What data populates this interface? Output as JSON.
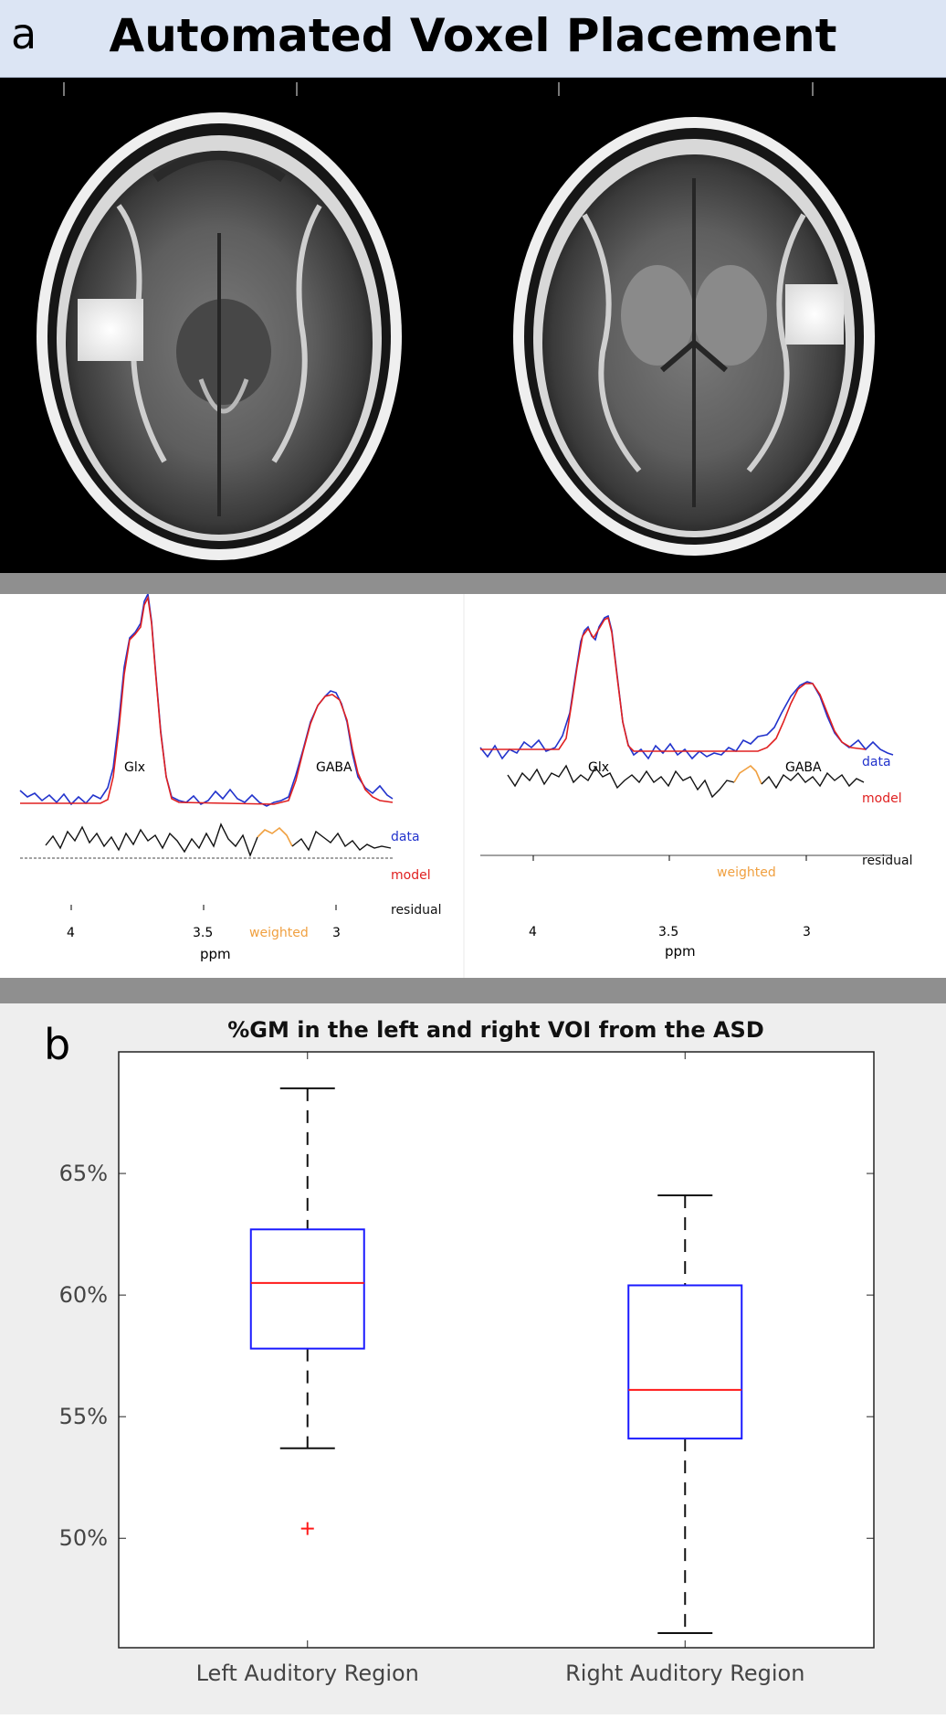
{
  "header": {
    "panel_letter": "a",
    "title": "Automated Voxel Placement"
  },
  "spectra": [
    {
      "peak_labels": {
        "glx": "Glx",
        "gaba": "GABA"
      },
      "legend": {
        "data": "data",
        "model": "model",
        "residual": "residual",
        "weighted": "weighted"
      },
      "x_ticks": [
        "4",
        "3.5",
        "3"
      ],
      "x_label": "ppm",
      "colors": {
        "data": "#2233cc",
        "model": "#e02020",
        "residual": "#111111",
        "weighted": "#f0a040"
      }
    },
    {
      "peak_labels": {
        "glx": "Glx",
        "gaba": "GABA"
      },
      "legend": {
        "data": "data",
        "model": "model",
        "residual": "residual",
        "weighted": "weighted"
      },
      "x_ticks": [
        "4",
        "3.5",
        "3"
      ],
      "x_label": "ppm",
      "colors": {
        "data": "#2233cc",
        "model": "#e02020",
        "residual": "#111111",
        "weighted": "#f0a040"
      }
    }
  ],
  "panel_b": {
    "panel_letter": "b"
  },
  "chart_data": {
    "type": "boxplot",
    "title": "%GM in the left and right VOI from the ASD",
    "categories": [
      "Left Auditory Region",
      "Right Auditory Region"
    ],
    "y_ticks": [
      "50%",
      "55%",
      "60%",
      "65%"
    ],
    "y_tick_values": [
      50,
      55,
      60,
      65
    ],
    "ylim": [
      45.5,
      70
    ],
    "boxes": [
      {
        "category": "Left Auditory Region",
        "whisker_low": 53.7,
        "q1": 57.8,
        "median": 60.5,
        "q3": 62.7,
        "whisker_high": 68.5,
        "outliers": [
          50.4
        ]
      },
      {
        "category": "Right Auditory Region",
        "whisker_low": 46.1,
        "q1": 54.1,
        "median": 56.1,
        "q3": 60.4,
        "whisker_high": 64.1,
        "outliers": []
      }
    ],
    "colors": {
      "box": "#1a1aff",
      "median": "#ff1a1a",
      "whisker": "#111111",
      "outlier": "#ff1a1a"
    }
  }
}
